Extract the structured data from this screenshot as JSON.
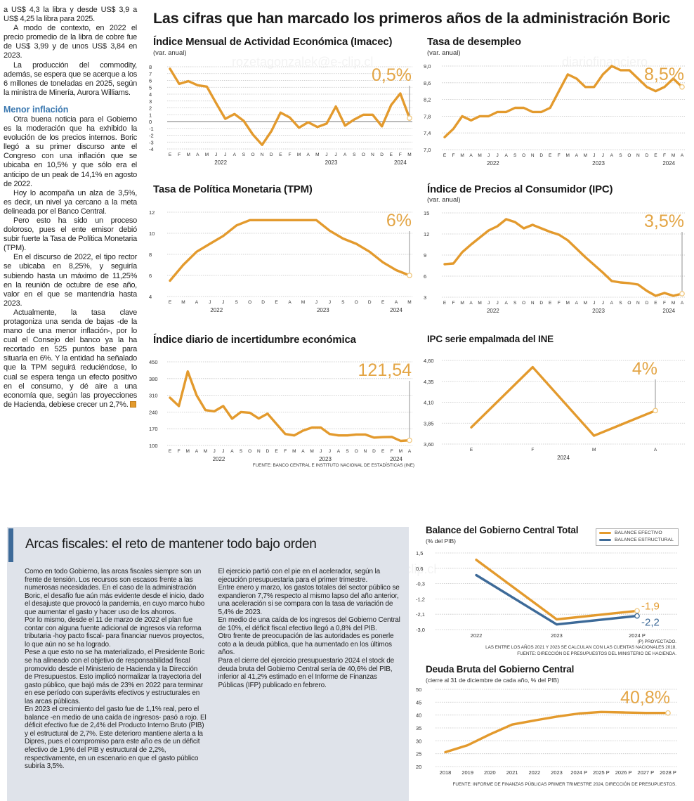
{
  "article": {
    "paragraphs_a": [
      "a US$ 4,3 la libra y desde US$ 3,9 a US$ 4,25 la libra para 2025.",
      "A modo de contexto, en 2022 el precio promedio de la libra de cobre fue de US$ 3,99 y de unos US$ 3,84 en 2023.",
      "La producción del commodity, además, se espera que se acerque a los 6 millones de toneladas en 2025, según la ministra de Minería, Aurora Williams."
    ],
    "subheading": "Menor inflación",
    "paragraphs_b": [
      "Otra buena noticia para el Gobierno es la moderación que ha exhibido la evolución de los precios internos. Boric llegó a su primer discurso ante el Congreso con una inflación que se ubicaba en 10,5% y que sólo era el anticipo de un peak de 14,1% en agosto de 2022.",
      "Hoy lo acompaña un alza de 3,5%, es decir, un nivel ya cercano a la meta delineada por el Banco Central.",
      "Pero esto ha sido un proceso doloroso, pues el ente emisor debió subir fuerte la Tasa de Política Monetaria (TPM).",
      "En el discurso de 2022, el tipo rector se ubicaba en 8,25%, y seguiría subiendo hasta un máximo de 11,25% en la reunión de octubre de ese año, valor en el que se mantendría hasta 2023.",
      "Actualmente, la tasa clave protagoniza una senda de bajas -de la mano de una menor inflación-, por lo cual el Consejo del banco ya la ha recortado en 525 puntos base para situarla en 6%. Y la entidad ha señalado que la TPM seguirá reduciéndose, lo cual se espera tenga un efecto positivo en el consumo, y dé aire a una economía que, según las proyecciones de Hacienda, debiese crecer un 2,7%."
    ],
    "end_icon": "end-of-article-square-icon"
  },
  "headline": "Las cifras que han marcado los primeros años de la administración Boric",
  "watermarks": [
    "rozetagonzalek@e-clip.cl",
    "diariofinanciero",
    "rozetagonzalek@e-clip.cl"
  ],
  "box": {
    "title": "Arcas fiscales: el reto de mantener todo bajo orden",
    "paragraphs": [
      "Como en todo Gobierno, las arcas fiscales siempre son un frente de tensión. Los recursos son escasos frente a las numerosas necesidades. En el caso de la administración Boric, el desafío fue aún más evidente desde el inicio, dado el desajuste que provocó la pandemia, en cuyo marco hubo que aumentar el gasto y hacer uso de los ahorros.",
      "Por lo mismo, desde el 11 de marzo de 2022 el plan fue contar con alguna fuente adicional de ingresos vía reforma tributaria -hoy pacto fiscal- para financiar nuevos proyectos, lo que aún no se ha logrado.",
      "Pese a que esto no se ha materializado, el Presidente Boric se ha alineado con el objetivo de responsabilidad fiscal promovido desde el Ministerio de Hacienda y la Dirección de Presupuestos. Esto implicó normalizar la trayectoria del gasto público, que bajó más de 23% en 2022 para terminar en ese período con superávits efectivos y estructurales en las arcas públicas.",
      "En 2023 el crecimiento del gasto fue de 1,1% real, pero el balance -en medio de una caída de ingresos- pasó a rojo. El déficit efectivo fue de 2,4% del Producto Interno Bruto (PIB) y el estructural de 2,7%. Este deterioro mantiene alerta a la Dipres, pues el compromiso para este año es de un déficit efectivo de 1,9% del PIB y estructural de 2,2%, respectivamente, en un escenario en que el gasto público subiría 3,5%.",
      "El ejercicio partió con el pie en el acelerador, según la ejecución presupuestaria para el primer trimestre.",
      "Entre enero y marzo, los gastos totales del sector público se expandieron 7,7% respecto al mismo lapso del año anterior, una aceleración si se compara con la tasa de variación de 5,4% de 2023.",
      "En medio de una caída de los ingresos del Gobierno Central de 10%, el déficit fiscal efectivo llegó a 0,8% del PIB.",
      "Otro frente de preocupación de las autoridades es ponerle coto a la deuda pública, que ha aumentado en los últimos años.",
      "Para el cierre del ejercicio presupuestario 2024 el stock de deuda bruta del Gobierno Central sería de 40,6% del PIB, inferior al 41,2% estimado en el Informe de Finanzas Públicas (IFP) publicado en febrero."
    ]
  },
  "colors": {
    "line": "#e39a2d",
    "callout": "#e3a545",
    "structural": "#3d6a98",
    "accent_heading": "#3a78b0",
    "box_bg": "#dfe3ea"
  },
  "sources": {
    "top": "FUENTE: BANCO CENTRAL E INSTITUTO NACIONAL DE ESTADÍSTICAS (INE)",
    "balance_note1": "(P) PROYECTADO.",
    "balance_note2": "LAS ENTRE LOS AÑOS 2021 Y 2023 SE CALCULAN  CON LAS CUENTAS NACIONALES 2018.",
    "balance_note3": "FUENTE: DIRECCIÓN DE PRESUPUESTOS DEL MINISTERIO DE HACIENDA.",
    "debt": "FUENTE: INFORME DE FINANZAS PÚBLICAS PRIMER TRIMESTRE 2024, DIRECCIÓN DE PRESUPUESTOS."
  },
  "chart_data": [
    {
      "type": "line",
      "title": "Índice Mensual de Actividad Económica (Imacec)",
      "subtitle": "(var. anual)",
      "yticks": [
        "8",
        "7",
        "6",
        "5",
        "4",
        "3",
        "2",
        "1",
        "0",
        "-1",
        "-2",
        "-3",
        "-4"
      ],
      "ylim": [
        -4,
        8
      ],
      "zero_line": true,
      "grid": true,
      "x_labels": [
        "E",
        "F",
        "M",
        "A",
        "M",
        "J",
        "J",
        "A",
        "S",
        "O",
        "N",
        "D",
        "E",
        "F",
        "M",
        "A",
        "M",
        "J",
        "J",
        "A",
        "S",
        "O",
        "N",
        "D",
        "E",
        "F",
        "M"
      ],
      "year_groups": [
        {
          "label": "2022",
          "months": 12
        },
        {
          "label": "2023",
          "months": 12
        },
        {
          "label": "2024",
          "months": 3
        }
      ],
      "values": [
        7.7,
        5.5,
        5.9,
        5.3,
        5.1,
        2.7,
        0.4,
        1.1,
        0.1,
        -1.9,
        -3.4,
        -1.4,
        1.3,
        0.6,
        -0.9,
        -0.1,
        -0.8,
        -0.3,
        2.2,
        -0.6,
        0.3,
        1.0,
        1.0,
        -0.7,
        2.4,
        4.1,
        0.5
      ],
      "callout": "0,5%"
    },
    {
      "type": "line",
      "title": "Tasa de desempleo",
      "subtitle": "(var. anual)",
      "yticks": [
        "9,0",
        "8,6",
        "8,2",
        "7,8",
        "7,4",
        "7,0"
      ],
      "ylim": [
        7.0,
        9.0
      ],
      "grid": true,
      "x_labels": [
        "E",
        "F",
        "M",
        "A",
        "M",
        "J",
        "J",
        "A",
        "S",
        "O",
        "N",
        "D",
        "E",
        "F",
        "M",
        "A",
        "M",
        "J",
        "J",
        "A",
        "S",
        "O",
        "N",
        "D",
        "E",
        "F",
        "M",
        "A"
      ],
      "year_groups": [
        {
          "label": "2022",
          "months": 12
        },
        {
          "label": "2023",
          "months": 12
        },
        {
          "label": "2024",
          "months": 4
        }
      ],
      "values": [
        7.3,
        7.5,
        7.8,
        7.7,
        7.8,
        7.8,
        7.9,
        7.9,
        8.0,
        8.0,
        7.9,
        7.9,
        8.0,
        8.4,
        8.8,
        8.7,
        8.5,
        8.5,
        8.8,
        9.0,
        8.9,
        8.9,
        8.7,
        8.5,
        8.4,
        8.5,
        8.7,
        8.5
      ],
      "callout": "8,5%"
    },
    {
      "type": "line",
      "title": "Tasa de Política Monetaria (TPM)",
      "subtitle": "",
      "yticks": [
        "12",
        "10",
        "8",
        "6",
        "4"
      ],
      "ylim": [
        4,
        12
      ],
      "grid": true,
      "x_labels": [
        "E",
        "M",
        "A",
        "J",
        "J",
        "S",
        "O",
        "D",
        "E",
        "A",
        "M",
        "J",
        "J",
        "S",
        "O",
        "D",
        "E",
        "A",
        "M"
      ],
      "year_groups": [
        {
          "label": "2022",
          "months": 8
        },
        {
          "label": "2023",
          "months": 8
        },
        {
          "label": "2024",
          "months": 3
        }
      ],
      "values": [
        5.5,
        7.0,
        8.25,
        9.0,
        9.75,
        10.75,
        11.25,
        11.25,
        11.25,
        11.25,
        11.25,
        11.25,
        10.25,
        9.5,
        9.0,
        8.25,
        7.25,
        6.5,
        6.0
      ],
      "callout": "6%"
    },
    {
      "type": "line",
      "title": "Índice de Precios al Consumidor (IPC)",
      "subtitle": "(var. anual)",
      "yticks": [
        "15",
        "12",
        "9",
        "6",
        "3"
      ],
      "ylim": [
        3,
        15
      ],
      "grid": true,
      "x_labels": [
        "E",
        "F",
        "M",
        "A",
        "M",
        "J",
        "J",
        "A",
        "S",
        "O",
        "N",
        "D",
        "E",
        "F",
        "M",
        "A",
        "M",
        "J",
        "J",
        "A",
        "S",
        "O",
        "N",
        "D",
        "E",
        "F",
        "M",
        "A"
      ],
      "year_groups": [
        {
          "label": "2022",
          "months": 12
        },
        {
          "label": "2023",
          "months": 12
        },
        {
          "label": "2024",
          "months": 4
        }
      ],
      "values": [
        7.7,
        7.8,
        9.4,
        10.5,
        11.5,
        12.5,
        13.1,
        14.1,
        13.7,
        12.8,
        13.3,
        12.8,
        12.3,
        11.9,
        11.1,
        9.9,
        8.7,
        7.6,
        6.5,
        5.3,
        5.1,
        5.0,
        4.8,
        3.9,
        3.2,
        3.6,
        3.2,
        3.5
      ],
      "callout": "3,5%"
    },
    {
      "type": "line",
      "title": "Índice diario de incertidumbre económica",
      "subtitle": "",
      "yticks": [
        "450",
        "380",
        "310",
        "240",
        "170",
        "100"
      ],
      "ylim": [
        100,
        450
      ],
      "grid": true,
      "x_labels": [
        "E",
        "F",
        "M",
        "A",
        "M",
        "J",
        "J",
        "A",
        "S",
        "O",
        "N",
        "D",
        "E",
        "F",
        "M",
        "A",
        "M",
        "J",
        "J",
        "A",
        "S",
        "O",
        "N",
        "D",
        "E",
        "F",
        "M",
        "A"
      ],
      "year_groups": [
        {
          "label": "2022",
          "months": 12
        },
        {
          "label": "2023",
          "months": 12
        },
        {
          "label": "2024",
          "months": 4
        }
      ],
      "values": [
        300,
        265,
        410,
        310,
        248,
        243,
        265,
        212,
        240,
        237,
        213,
        233,
        190,
        148,
        142,
        162,
        175,
        175,
        148,
        142,
        142,
        146,
        146,
        133,
        135,
        136,
        119,
        121.54
      ],
      "callout": "121,54"
    },
    {
      "type": "line",
      "title": "IPC serie empalmada del INE",
      "subtitle": "",
      "yticks": [
        "4,60",
        "4,35",
        "4,10",
        "3,85",
        "3,60"
      ],
      "ylim": [
        3.6,
        4.6
      ],
      "grid": true,
      "x_labels": [
        "E",
        "F",
        "M",
        "A"
      ],
      "year_groups": [
        {
          "label": "2024",
          "months": 4
        }
      ],
      "values": [
        3.8,
        4.52,
        3.7,
        4.0
      ],
      "callout": "4%"
    },
    {
      "type": "line",
      "title": "Balance del Gobierno Central Total",
      "subtitle": "(% del PIB)",
      "yticks": [
        "1,5",
        "0,6",
        "-0,3",
        "-1,2",
        "-2,1",
        "-3,0"
      ],
      "ylim": [
        -3.0,
        1.5
      ],
      "grid": true,
      "legend": "top-right",
      "x_labels": [
        "2022",
        "2023",
        "2024 P"
      ],
      "series": [
        {
          "name": "BALANCE EFECTIVO",
          "values": [
            1.1,
            -2.4,
            -1.9
          ],
          "end_label": "-1,9",
          "color": "#e39a2d"
        },
        {
          "name": "BALANCE ESTRUCTURAL",
          "values": [
            0.2,
            -2.7,
            -2.2
          ],
          "end_label": "-2,2",
          "color": "#3d6a98"
        }
      ]
    },
    {
      "type": "line",
      "title": "Deuda Bruta del Gobierno Central",
      "subtitle": "(cierre al 31 de diciembre de cada año, % del PIB)",
      "yticks": [
        "50",
        "45",
        "40",
        "35",
        "30",
        "25",
        "20"
      ],
      "ylim": [
        20,
        50
      ],
      "grid": true,
      "x_labels": [
        "2018",
        "2019",
        "2020",
        "2021",
        "2022",
        "2023",
        "2024 P",
        "2025 P",
        "2026 P",
        "2027 P",
        "2028 P"
      ],
      "values": [
        25.6,
        28.3,
        32.5,
        36.3,
        37.9,
        39.4,
        40.6,
        41.2,
        41.0,
        40.8,
        40.8
      ],
      "callout": "40,8%"
    }
  ]
}
